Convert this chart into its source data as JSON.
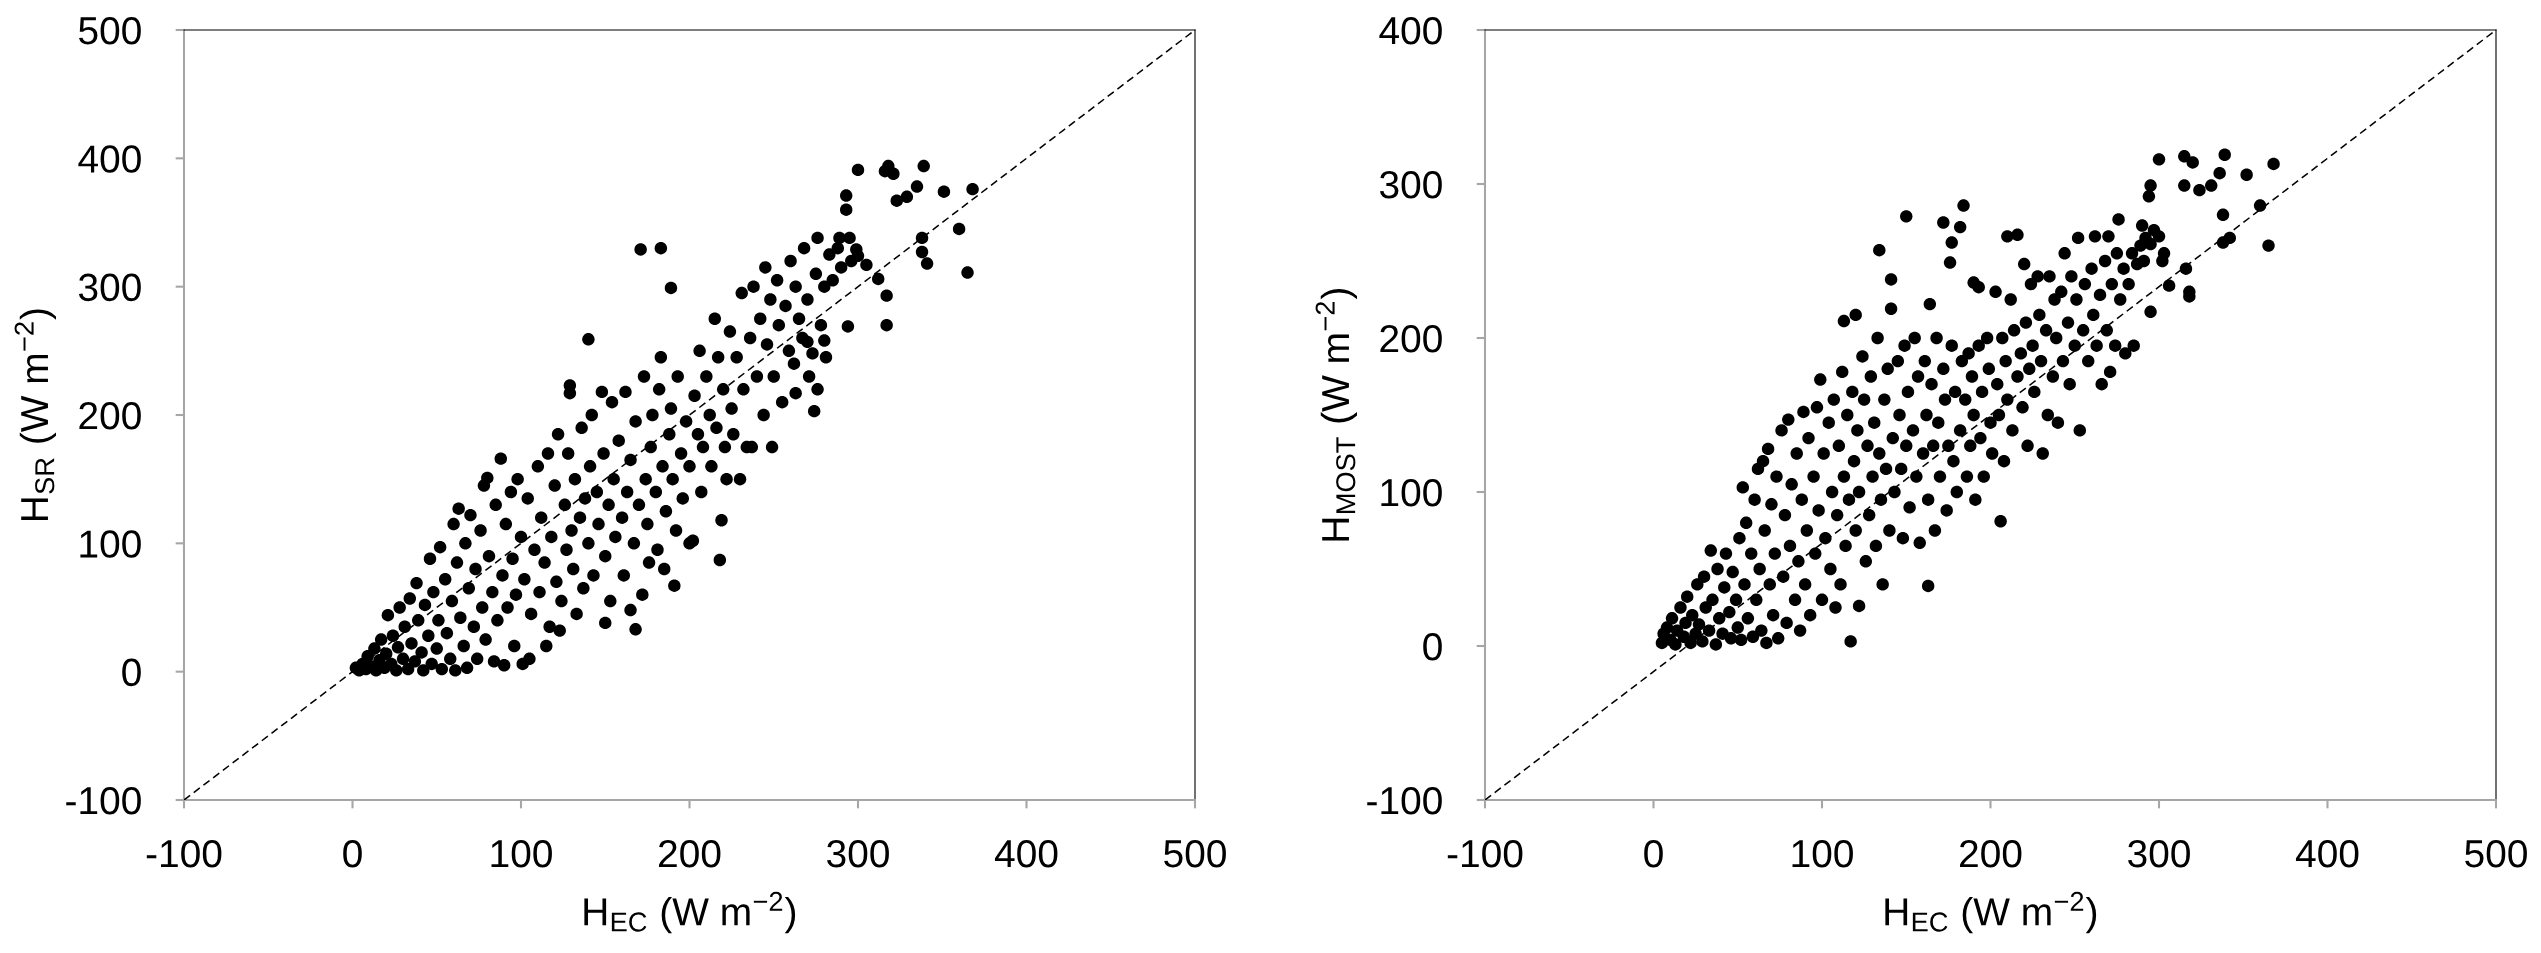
{
  "chart_data": [
    {
      "type": "scatter",
      "xlabel": "H$_{EC}$ (W m$^{−2}$)",
      "ylabel": "H$_{SR}$ (W m$^{−2}$)",
      "xlim": [
        -100,
        500
      ],
      "ylim": [
        -100,
        500
      ],
      "xticks": [
        -100,
        0,
        100,
        200,
        300,
        400,
        500
      ],
      "yticks": [
        -100,
        0,
        100,
        200,
        300,
        400,
        500
      ],
      "series": [
        {
          "color": "#000000",
          "marker": "circle",
          "x": [
            2,
            4,
            6,
            8,
            9,
            11,
            13,
            14,
            16,
            17,
            19,
            20,
            21,
            23,
            24,
            26,
            27,
            28,
            30,
            31,
            33,
            34,
            35,
            37,
            38,
            39,
            41,
            42,
            43,
            45,
            46,
            47,
            48,
            50,
            51,
            52,
            53,
            55,
            56,
            58,
            59,
            60,
            61,
            62,
            63,
            64,
            66,
            67,
            68,
            69,
            70,
            72,
            73,
            74,
            76,
            77,
            78,
            79,
            80,
            81,
            83,
            84,
            85,
            86,
            88,
            89,
            90,
            91,
            92,
            94,
            95,
            96,
            97,
            98,
            100,
            101,
            102,
            104,
            105,
            106,
            108,
            110,
            111,
            112,
            114,
            115,
            116,
            117,
            118,
            120,
            121,
            122,
            123,
            124,
            126,
            127,
            128,
            129,
            129,
            130,
            131,
            132,
            133,
            135,
            136,
            137,
            138,
            140,
            140,
            141,
            142,
            143,
            145,
            146,
            148,
            149,
            150,
            150,
            152,
            153,
            154,
            155,
            156,
            158,
            160,
            161,
            162,
            163,
            165,
            165,
            167,
            168,
            168,
            170,
            171,
            172,
            173,
            174,
            175,
            176,
            177,
            178,
            180,
            181,
            182,
            183,
            183,
            184,
            185,
            186,
            188,
            189,
            189,
            190,
            191,
            192,
            193,
            195,
            196,
            198,
            200,
            200,
            202,
            203,
            205,
            206,
            207,
            208,
            210,
            212,
            213,
            215,
            216,
            217,
            218,
            219,
            220,
            221,
            222,
            224,
            225,
            226,
            228,
            230,
            231,
            232,
            234,
            236,
            237,
            238,
            240,
            242,
            244,
            245,
            246,
            248,
            249,
            250,
            252,
            253,
            255,
            257,
            259,
            260,
            262,
            263,
            263,
            265,
            267,
            268,
            270,
            270,
            271,
            273,
            274,
            275,
            276,
            276,
            278,
            280,
            280,
            281,
            283,
            285,
            288,
            289,
            290,
            293,
            293,
            294,
            295,
            296,
            299,
            300,
            300,
            305,
            312,
            316,
            317,
            317,
            318,
            321,
            323,
            329,
            335,
            338,
            338,
            339,
            341,
            351,
            360,
            365,
            368
          ],
          "values": [
            3,
            1,
            6,
            2,
            12,
            4,
            18,
            1,
            9,
            25,
            3,
            14,
            44,
            6,
            28,
            1,
            19,
            50,
            10,
            35,
            2,
            57,
            22,
            8,
            69,
            40,
            15,
            1,
            52,
            28,
            88,
            6,
            62,
            18,
            40,
            97,
            2,
            72,
            30,
            10,
            55,
            115,
            1,
            85,
            127,
            42,
            20,
            100,
            3,
            65,
            122,
            35,
            80,
            10,
            110,
            50,
            145,
            25,
            151,
            90,
            62,
            8,
            130,
            40,
            166,
            75,
            5,
            115,
            50,
            140,
            88,
            20,
            60,
            150,
            105,
            6,
            72,
            135,
            10,
            45,
            95,
            160,
            62,
            120,
            85,
            20,
            170,
            35,
            105,
            145,
            70,
            185,
            32,
            55,
            130,
            95,
            170,
            223,
            217,
            110,
            80,
            150,
            45,
            120,
            190,
            65,
            135,
            259,
            100,
            160,
            200,
            75,
            140,
            115,
            218,
            170,
            38,
            90,
            130,
            55,
            210,
            150,
            105,
            180,
            120,
            75,
            218,
            140,
            48,
            165,
            100,
            33,
            195,
            130,
            329,
            60,
            230,
            150,
            115,
            85,
            175,
            200,
            140,
            95,
            220,
            330,
            245,
            160,
            80,
            125,
            185,
            299,
            205,
            150,
            67,
            110,
            230,
            170,
            135,
            195,
            160,
            100,
            102,
            215,
            185,
            250,
            140,
            175,
            230,
            200,
            160,
            275,
            190,
            245,
            87,
            118,
            220,
            175,
            150,
            265,
            205,
            185,
            245,
            150,
            295,
            220,
            175,
            260,
            175,
            300,
            230,
            275,
            200,
            315,
            255,
            290,
            175,
            230,
            305,
            270,
            210,
            285,
            250,
            320,
            240,
            300,
            217,
            275,
            260,
            330,
            290,
            257,
            230,
            248,
            203,
            310,
            338,
            220,
            270,
            300,
            258,
            245,
            325,
            305,
            330,
            338,
            315,
            360,
            371,
            269,
            338,
            320,
            329,
            391,
            324,
            317,
            306,
            390,
            293,
            270,
            394,
            388,
            367,
            370,
            378,
            338,
            327,
            394,
            318,
            374,
            345,
            311,
            376
          ]
        },
        {
          "type": "line",
          "color": "#000000",
          "line_style": "dashed",
          "x": [
            -100,
            500
          ],
          "values": [
            -100,
            500
          ]
        }
      ]
    },
    {
      "type": "scatter",
      "xlabel": "H$_{EC}$ (W m$^{−2}$)",
      "ylabel": "H$_{MOST}$ (W m$^{−2}$)",
      "xlim": [
        -100,
        500
      ],
      "ylim": [
        -100,
        400
      ],
      "xticks": [
        -100,
        0,
        100,
        200,
        300,
        400,
        500
      ],
      "yticks": [
        -100,
        0,
        100,
        200,
        300,
        400
      ],
      "series": [
        {
          "color": "#000000",
          "marker": "circle",
          "x": [
            5,
            6,
            8,
            10,
            11,
            13,
            14,
            16,
            18,
            19,
            20,
            22,
            23,
            25,
            26,
            27,
            29,
            30,
            31,
            33,
            34,
            35,
            37,
            38,
            39,
            41,
            42,
            43,
            45,
            46,
            47,
            49,
            50,
            51,
            52,
            53,
            54,
            55,
            56,
            58,
            59,
            60,
            61,
            62,
            63,
            64,
            65,
            66,
            67,
            68,
            69,
            70,
            71,
            72,
            73,
            74,
            76,
            77,
            78,
            79,
            80,
            81,
            82,
            84,
            85,
            86,
            87,
            88,
            89,
            90,
            91,
            92,
            93,
            95,
            96,
            97,
            98,
            99,
            100,
            101,
            102,
            104,
            105,
            106,
            107,
            108,
            109,
            110,
            111,
            112,
            113,
            113,
            114,
            115,
            116,
            117,
            118,
            119,
            120,
            120,
            121,
            122,
            122,
            124,
            125,
            126,
            127,
            128,
            129,
            130,
            131,
            132,
            133,
            134,
            134,
            135,
            136,
            137,
            138,
            139,
            140,
            141,
            141,
            142,
            143,
            145,
            146,
            147,
            148,
            149,
            150,
            150,
            151,
            152,
            154,
            155,
            156,
            157,
            158,
            160,
            161,
            162,
            163,
            163,
            164,
            165,
            166,
            167,
            168,
            169,
            170,
            172,
            172,
            173,
            174,
            175,
            176,
            177,
            177,
            178,
            179,
            180,
            182,
            182,
            183,
            184,
            185,
            186,
            187,
            188,
            189,
            190,
            190,
            191,
            193,
            193,
            194,
            195,
            196,
            198,
            199,
            200,
            201,
            203,
            204,
            205,
            206,
            207,
            208,
            209,
            210,
            210,
            212,
            213,
            214,
            216,
            216,
            218,
            219,
            220,
            221,
            222,
            223,
            224,
            225,
            226,
            228,
            229,
            230,
            231,
            233,
            234,
            235,
            237,
            238,
            239,
            240,
            242,
            243,
            244,
            246,
            247,
            248,
            250,
            251,
            252,
            253,
            255,
            256,
            258,
            260,
            261,
            262,
            263,
            265,
            266,
            268,
            269,
            270,
            271,
            272,
            274,
            275,
            276,
            277,
            279,
            280,
            282,
            284,
            285,
            287,
            289,
            290,
            291,
            292,
            294,
            295,
            295,
            295,
            297,
            300,
            300,
            302,
            303,
            306,
            315,
            315,
            316,
            318,
            318,
            320,
            324,
            331,
            336,
            338,
            338,
            339,
            342,
            352,
            360,
            365,
            368
          ],
          "values": [
            2,
            8,
            12,
            4,
            18,
            1,
            10,
            25,
            6,
            15,
            32,
            2,
            20,
            8,
            40,
            14,
            3,
            45,
            25,
            10,
            62,
            30,
            1,
            50,
            18,
            8,
            38,
            60,
            22,
            5,
            48,
            30,
            12,
            70,
            4,
            103,
            40,
            80,
            18,
            60,
            6,
            95,
            30,
            115,
            50,
            10,
            120,
            75,
            2,
            128,
            40,
            92,
            20,
            60,
            110,
            5,
            140,
            45,
            85,
            15,
            147,
            65,
            105,
            30,
            125,
            55,
            10,
            95,
            152,
            40,
            75,
            135,
            20,
            110,
            60,
            155,
            88,
            173,
            30,
            125,
            70,
            145,
            50,
            100,
            160,
            25,
            85,
            130,
            40,
            178,
            211,
            110,
            65,
            150,
            95,
            3,
            165,
            120,
            215,
            75,
            140,
            26,
            100,
            188,
            160,
            55,
            130,
            85,
            175,
            110,
            145,
            65,
            200,
            257,
            125,
            95,
            40,
            160,
            115,
            180,
            75,
            238,
            219,
            135,
            100,
            185,
            150,
            115,
            70,
            195,
            279,
            130,
            165,
            90,
            140,
            200,
            110,
            175,
            67,
            125,
            185,
            150,
            39,
            95,
            222,
            170,
            130,
            75,
            200,
            145,
            110,
            275,
            180,
            160,
            88,
            130,
            249,
            262,
            195,
            120,
            165,
            100,
            272,
            140,
            185,
            286,
            160,
            110,
            190,
            130,
            175,
            236,
            150,
            95,
            233,
            195,
            135,
            165,
            110,
            200,
            180,
            145,
            125,
            230,
            170,
            150,
            81,
            200,
            120,
            185,
            266,
            160,
            225,
            140,
            205,
            267,
            175,
            190,
            155,
            248,
            210,
            130,
            180,
            235,
            195,
            165,
            240,
            215,
            185,
            125,
            205,
            150,
            240,
            175,
            225,
            200,
            145,
            230,
            185,
            255,
            210,
            170,
            240,
            195,
            225,
            265,
            140,
            205,
            235,
            185,
            245,
            215,
            266,
            195,
            228,
            170,
            250,
            205,
            266,
            178,
            235,
            195,
            255,
            277,
            225,
            245,
            190,
            235,
            255,
            195,
            248,
            260,
            273,
            250,
            265,
            292,
            299,
            217,
            261,
            270,
            316,
            266,
            250,
            255,
            234,
            318,
            299,
            245,
            230,
            227,
            314,
            296,
            299,
            307,
            280,
            262,
            319,
            265,
            306,
            286,
            260,
            313
          ]
        },
        {
          "type": "line",
          "color": "#000000",
          "line_style": "dashed",
          "x": [
            -100,
            500
          ],
          "values": [
            -100,
            400
          ]
        }
      ]
    }
  ]
}
